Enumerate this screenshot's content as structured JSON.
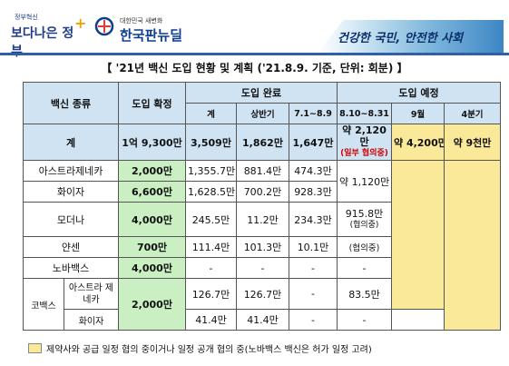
{
  "header": {
    "logo1_small": "정부혁신",
    "logo1_text": "보다나은 정부",
    "logo2_small": "대한민국 새변화",
    "logo2_text": "한국판뉴딜",
    "slogan": "건강한 국민, 안전한 사회"
  },
  "title": "【 '21년 백신 도입 현황 및 계획 ('21.8.9. 기준, 단위: 회분) 】",
  "table": {
    "col_vaccine": "백신 종류",
    "col_confirmed": "도입 확정",
    "col_done": "도입 완료",
    "col_planned": "도입 예정",
    "sub_total": "계",
    "sub_h1": "상반기",
    "sub_jul": "7.1~8.9",
    "sub_aug": "8.10~8.31",
    "sub_sep": "9월",
    "sub_q4": "4분기",
    "rows": {
      "total": {
        "name": "계",
        "confirmed": "1억 9,300만",
        "done_total": "3,509만",
        "done_h1": "1,862만",
        "done_jul": "1,647만",
        "aug": "약 2,120만",
        "aug_note": "(일부 협의중)",
        "sep": "약 4,200만",
        "q4": "약 9천만"
      },
      "az": {
        "name": "아스트라제네카",
        "confirmed": "2,000만",
        "done_total": "1,355.7만",
        "done_h1": "881.4만",
        "done_jul": "474.3만"
      },
      "pfizer": {
        "name": "화이자",
        "confirmed": "6,600만",
        "done_total": "1,628.5만",
        "done_h1": "700.2만",
        "done_jul": "928.3만"
      },
      "az_pfizer_aug": "약 1,120만",
      "moderna": {
        "name": "모더나",
        "confirmed": "4,000만",
        "done_total": "245.5만",
        "done_h1": "11.2만",
        "done_jul": "234.3만",
        "aug": "915.8만",
        "aug_note": "(협의중)"
      },
      "janssen": {
        "name": "얀센",
        "confirmed": "700만",
        "done_total": "111.4만",
        "done_h1": "101.3만",
        "done_jul": "10.1만",
        "aug": "(협의중)"
      },
      "novavax": {
        "name": "노바백스",
        "confirmed": "4,000만",
        "done_total": "-",
        "done_h1": "-",
        "done_jul": "-",
        "aug": "-"
      },
      "covax": {
        "name": "코백스",
        "confirmed": "2,000만",
        "az_name": "아스트라 제네카",
        "az_done_total": "126.7만",
        "az_done_h1": "126.7만",
        "az_done_jul": "-",
        "az_aug": "83.5만",
        "pf_name": "화이자",
        "pf_done_total": "41.4만",
        "pf_done_h1": "41.4만",
        "pf_done_jul": "-",
        "pf_aug": "-"
      }
    }
  },
  "legend": "제약사와 공급 일정 협의 중이거나 일정 공개 협의 중(노바백스 백신은 허가 일정 고려)",
  "colors": {
    "header_blue": "#cfe3f3",
    "confirmed_green": "#c9efc2",
    "planned_yellow": "#fbe99a"
  }
}
